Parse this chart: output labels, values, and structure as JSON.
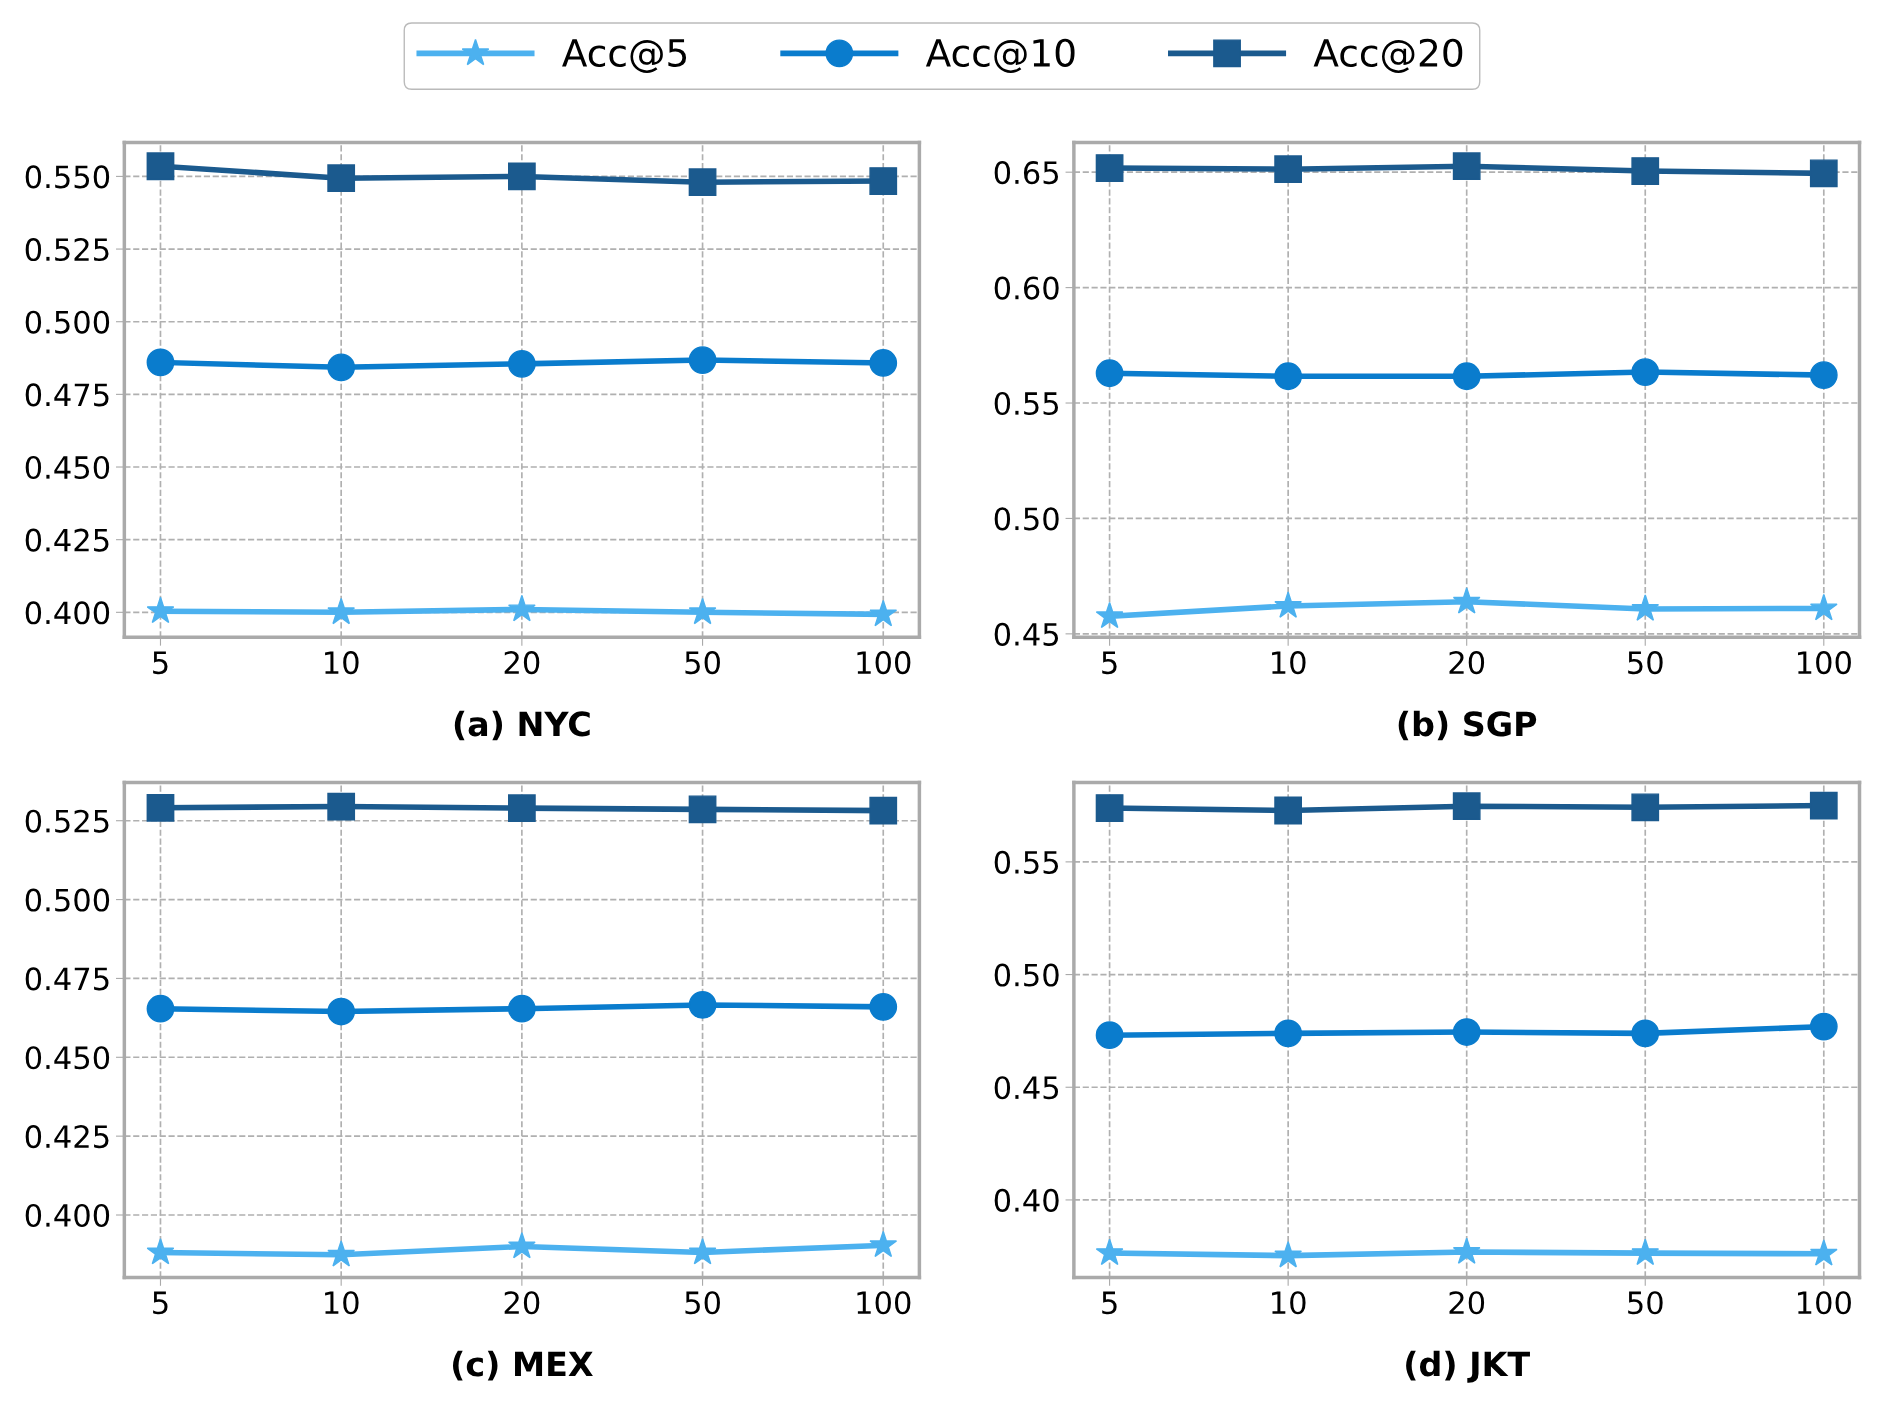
{
  "chart_data": [
    {
      "type": "line",
      "xlabel": "(a) NYC",
      "categories": [
        "5",
        "10",
        "20",
        "50",
        "100"
      ],
      "ylim": [
        0.3914,
        0.5617
      ],
      "yticks": [
        {
          "value": 0.4,
          "label": "0.400"
        },
        {
          "value": 0.425,
          "label": "0.425"
        },
        {
          "value": 0.45,
          "label": "0.450"
        },
        {
          "value": 0.475,
          "label": "0.475"
        },
        {
          "value": 0.5,
          "label": "0.500"
        },
        {
          "value": 0.525,
          "label": "0.525"
        },
        {
          "value": 0.55,
          "label": "0.550"
        }
      ],
      "grid": true,
      "legend": "top",
      "line_style": "solid",
      "series": [
        {
          "name": "Acc@5",
          "color": "#4cb1ef",
          "marker": "star",
          "values": [
            0.4004,
            0.4,
            0.401,
            0.4,
            0.3993
          ]
        },
        {
          "name": "Acc@10",
          "color": "#0a7ccd",
          "marker": "circle",
          "values": [
            0.486,
            0.4843,
            0.4855,
            0.4868,
            0.4858
          ]
        },
        {
          "name": "Acc@20",
          "color": "#1b5a8e",
          "marker": "square",
          "values": [
            0.5535,
            0.5494,
            0.55,
            0.548,
            0.5484
          ]
        }
      ]
    },
    {
      "type": "line",
      "xlabel": "(b) SGP",
      "categories": [
        "5",
        "10",
        "20",
        "50",
        "100"
      ],
      "ylim": [
        0.4485,
        0.6629
      ],
      "yticks": [
        {
          "value": 0.45,
          "label": "0.45"
        },
        {
          "value": 0.5,
          "label": "0.50"
        },
        {
          "value": 0.55,
          "label": "0.55"
        },
        {
          "value": 0.6,
          "label": "0.60"
        },
        {
          "value": 0.65,
          "label": "0.65"
        }
      ],
      "grid": true,
      "line_style": "solid",
      "series": [
        {
          "color": "#4cb1ef",
          "marker": "star",
          "values": [
            0.4576,
            0.4621,
            0.4639,
            0.4608,
            0.461
          ]
        },
        {
          "color": "#0a7ccd",
          "marker": "circle",
          "values": [
            0.5629,
            0.5616,
            0.5616,
            0.5634,
            0.5621
          ]
        },
        {
          "color": "#1b5a8e",
          "marker": "square",
          "values": [
            0.6518,
            0.6513,
            0.6526,
            0.6505,
            0.6495
          ]
        }
      ]
    },
    {
      "type": "line",
      "xlabel": "(c) MEX",
      "categories": [
        "5",
        "10",
        "20",
        "50",
        "100"
      ],
      "ylim": [
        0.3802,
        0.5371
      ],
      "yticks": [
        {
          "value": 0.4,
          "label": "0.400"
        },
        {
          "value": 0.425,
          "label": "0.425"
        },
        {
          "value": 0.45,
          "label": "0.450"
        },
        {
          "value": 0.475,
          "label": "0.475"
        },
        {
          "value": 0.5,
          "label": "0.500"
        },
        {
          "value": 0.525,
          "label": "0.525"
        }
      ],
      "grid": true,
      "line_style": "solid",
      "series": [
        {
          "color": "#4cb1ef",
          "marker": "star",
          "values": [
            0.3881,
            0.3874,
            0.39,
            0.3881,
            0.3904
          ]
        },
        {
          "color": "#0a7ccd",
          "marker": "circle",
          "values": [
            0.4654,
            0.4645,
            0.4654,
            0.4666,
            0.466
          ]
        },
        {
          "color": "#1b5a8e",
          "marker": "square",
          "values": [
            0.5291,
            0.5295,
            0.529,
            0.5286,
            0.5282
          ]
        }
      ]
    },
    {
      "type": "line",
      "xlabel": "(d) JKT",
      "categories": [
        "5",
        "10",
        "20",
        "50",
        "100"
      ],
      "ylim": [
        0.3656,
        0.5852
      ],
      "yticks": [
        {
          "value": 0.4,
          "label": "0.40"
        },
        {
          "value": 0.45,
          "label": "0.45"
        },
        {
          "value": 0.5,
          "label": "0.50"
        },
        {
          "value": 0.55,
          "label": "0.55"
        }
      ],
      "grid": true,
      "line_style": "solid",
      "series": [
        {
          "color": "#4cb1ef",
          "marker": "star",
          "values": [
            0.3764,
            0.3753,
            0.3769,
            0.3764,
            0.3761
          ]
        },
        {
          "color": "#0a7ccd",
          "marker": "circle",
          "values": [
            0.4731,
            0.4739,
            0.4745,
            0.4739,
            0.4769
          ]
        },
        {
          "color": "#1b5a8e",
          "marker": "square",
          "values": [
            0.5739,
            0.5728,
            0.5747,
            0.5742,
            0.575
          ]
        }
      ]
    }
  ]
}
